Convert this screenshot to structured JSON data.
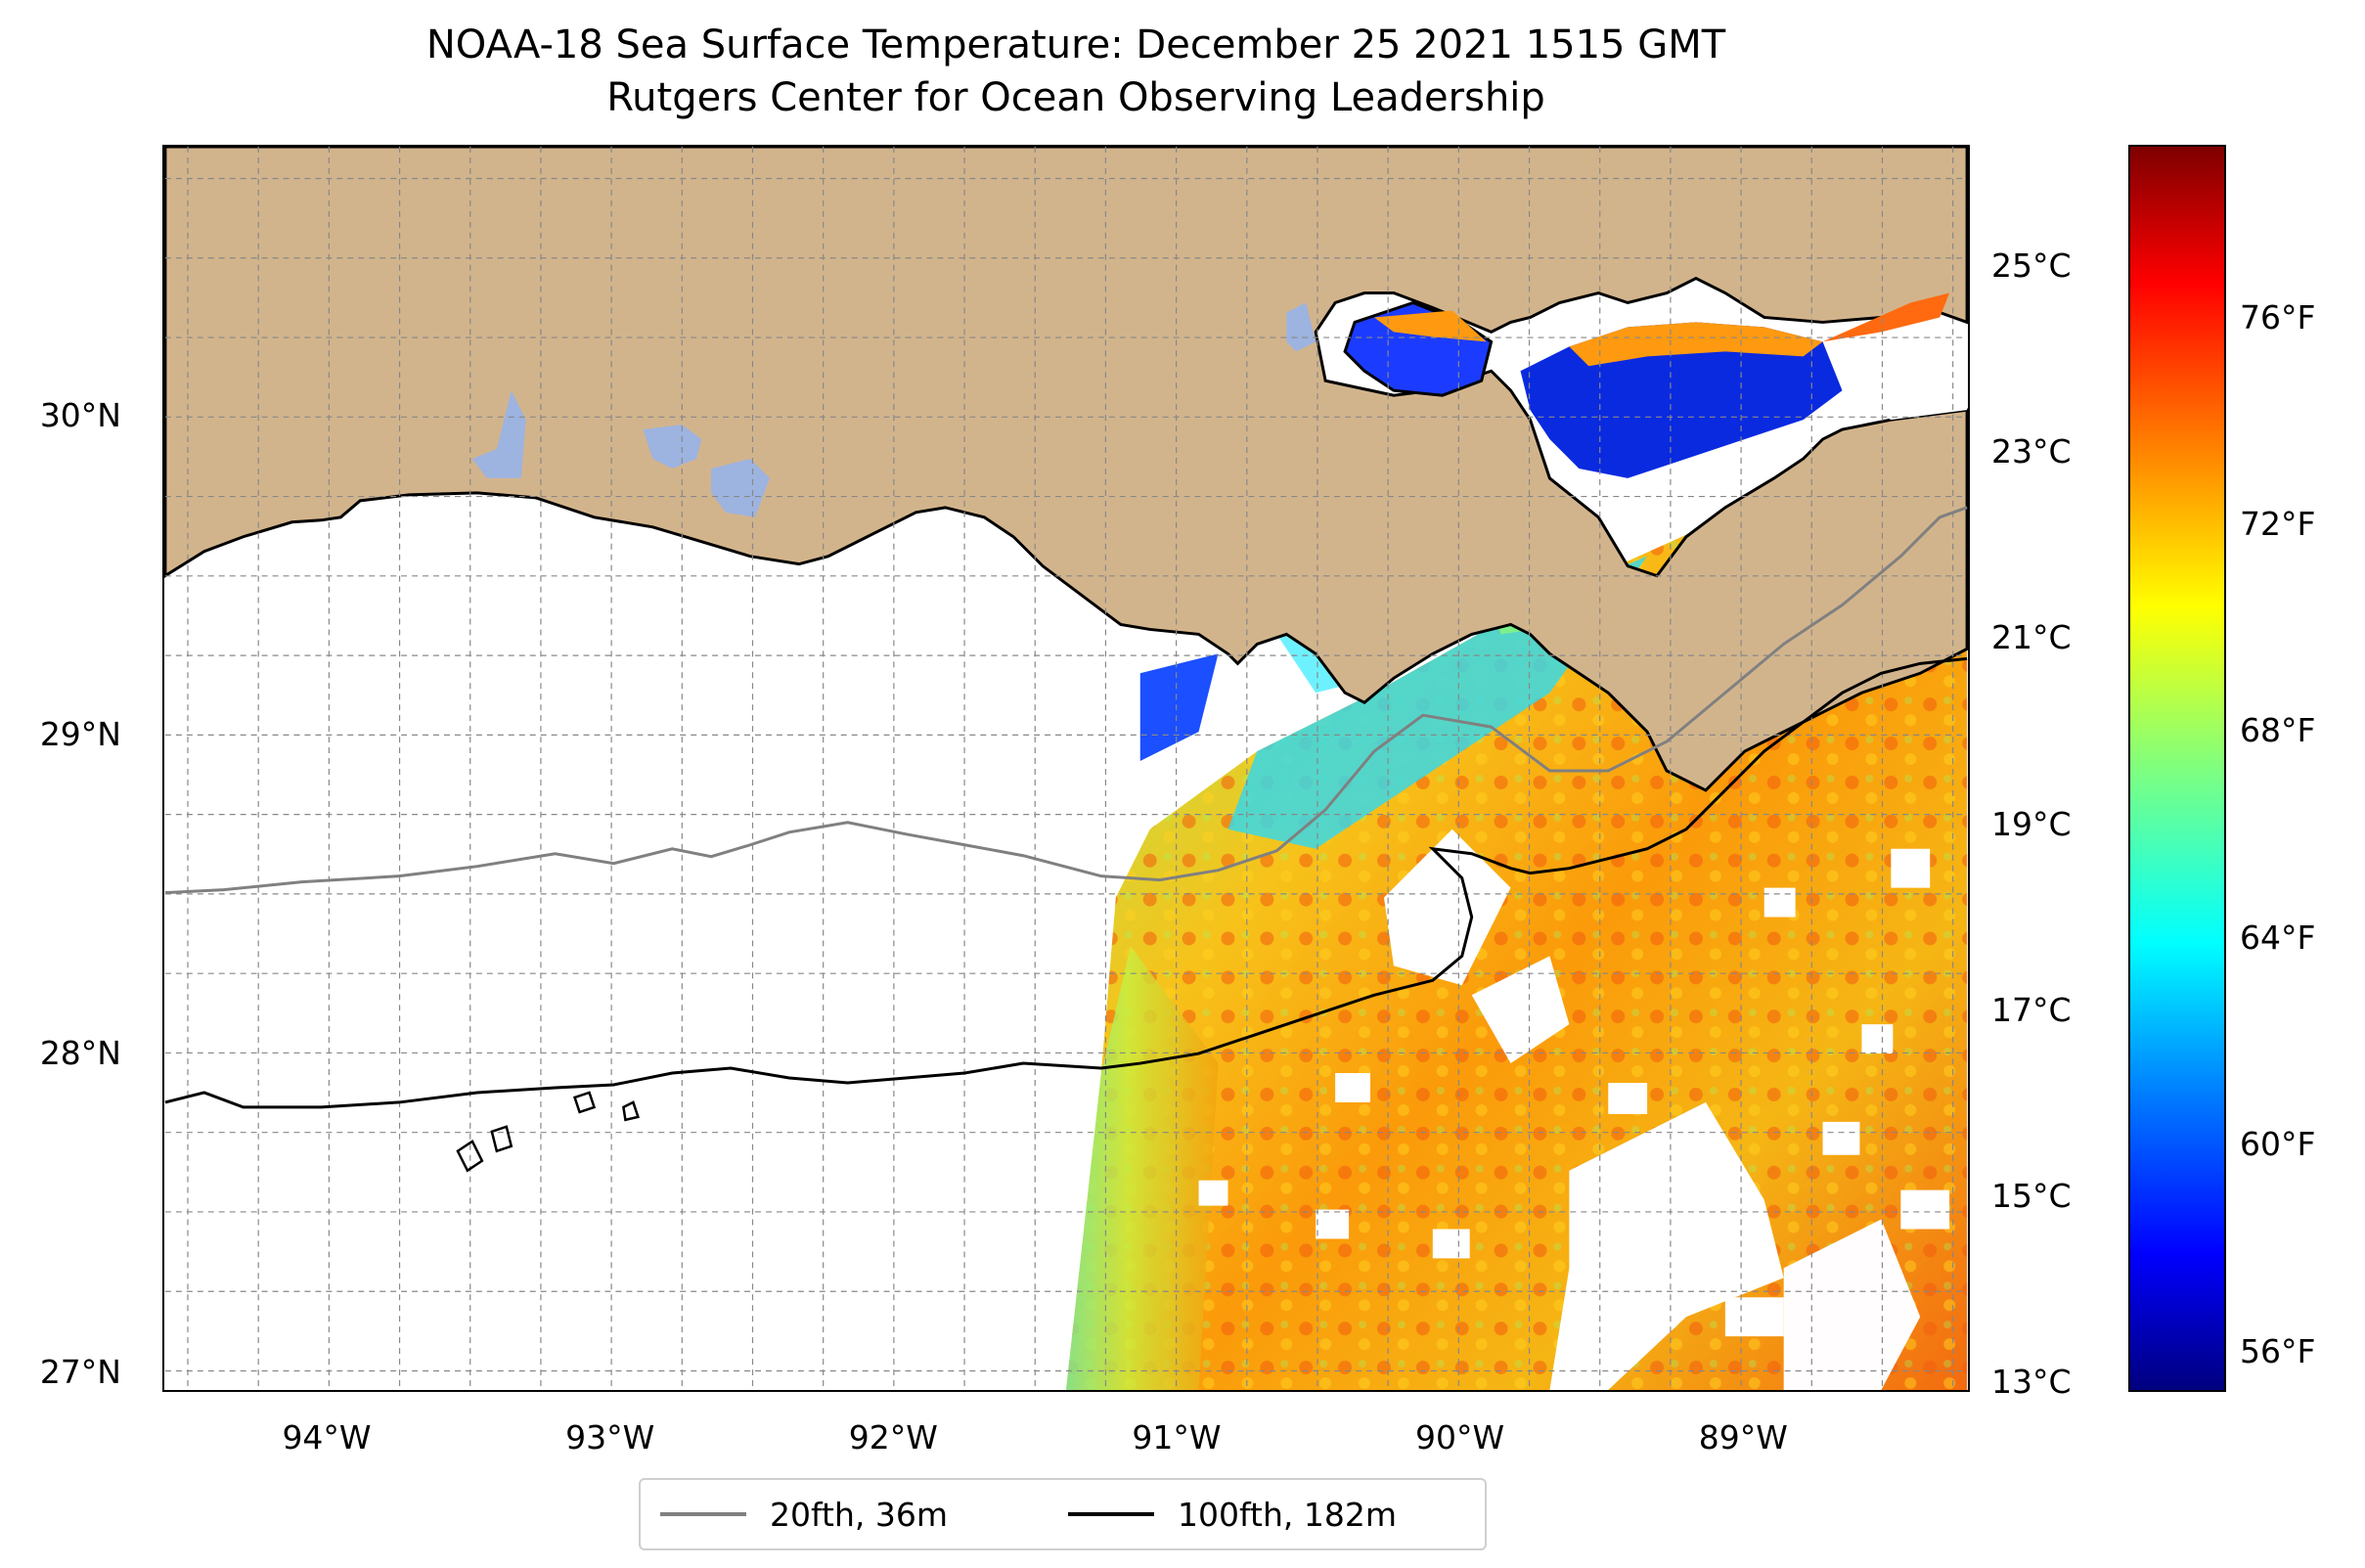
{
  "title": {
    "line1": "NOAA-18 Sea Surface Temperature: December 25 2021 1515 GMT",
    "line2": "Rutgers Center for Ocean Observing Leadership"
  },
  "map": {
    "extent": {
      "lon_min": -94.58,
      "lon_max": -88.2,
      "lat_min": 26.94,
      "lat_max": 30.85
    },
    "lat_ticks": [
      {
        "value": 30,
        "label": "30°N"
      },
      {
        "value": 29,
        "label": "29°N"
      },
      {
        "value": 28,
        "label": "28°N"
      },
      {
        "value": 27,
        "label": "27°N"
      }
    ],
    "lon_ticks": [
      {
        "value": -94,
        "label": "94°W"
      },
      {
        "value": -93,
        "label": "93°W"
      },
      {
        "value": -92,
        "label": "92°W"
      },
      {
        "value": -91,
        "label": "91°W"
      },
      {
        "value": -90,
        "label": "90°W"
      },
      {
        "value": -89,
        "label": "89°W"
      }
    ],
    "gridlines": "dashed, every 0.25°",
    "colors": {
      "land": "#d2b48c",
      "inland_water": "#9db3e0",
      "coast": "#000000"
    }
  },
  "colorbar": {
    "colormap": "jet",
    "celsius_range": [
      12.9,
      26.3
    ],
    "celsius_ticks": [
      {
        "value": 25,
        "label": "25°C"
      },
      {
        "value": 23,
        "label": "23°C"
      },
      {
        "value": 21,
        "label": "21°C"
      },
      {
        "value": 19,
        "label": "19°C"
      },
      {
        "value": 17,
        "label": "17°C"
      },
      {
        "value": 15,
        "label": "15°C"
      },
      {
        "value": 13,
        "label": "13°C"
      }
    ],
    "fahrenheit_ticks": [
      {
        "value": 76,
        "label": "76°F"
      },
      {
        "value": 72,
        "label": "72°F"
      },
      {
        "value": 68,
        "label": "68°F"
      },
      {
        "value": 64,
        "label": "64°F"
      },
      {
        "value": 60,
        "label": "60°F"
      },
      {
        "value": 56,
        "label": "56°F"
      }
    ]
  },
  "legend": {
    "items": [
      {
        "label": "20fth, 36m",
        "color": "#808080"
      },
      {
        "label": "100fth, 182m",
        "color": "#000000"
      }
    ]
  }
}
